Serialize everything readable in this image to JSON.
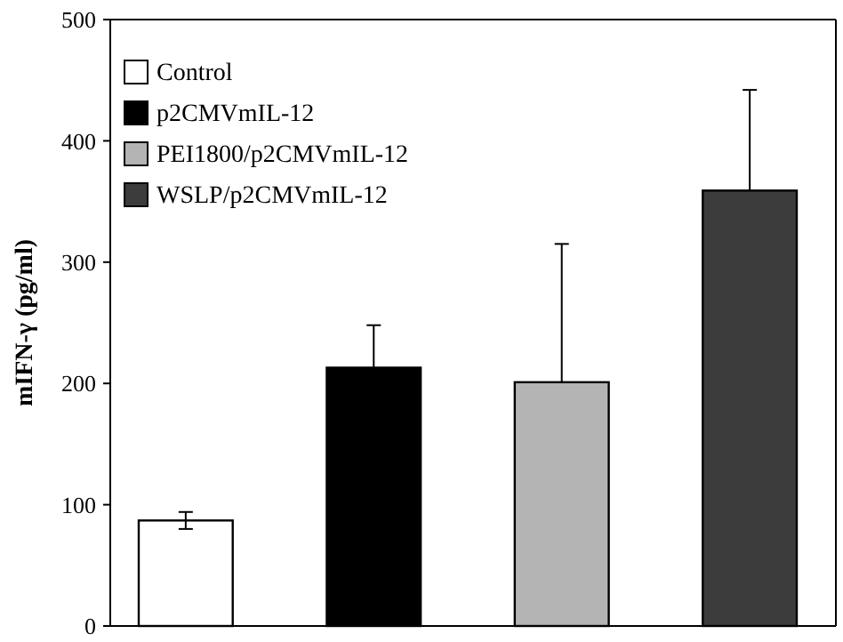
{
  "chart_data": {
    "type": "bar",
    "ylabel": "mIFN-γ (pg/ml)",
    "categories": [
      null,
      null,
      null,
      null
    ],
    "series": [
      {
        "name": "Control",
        "color": "#ffffff",
        "values": [
          87,
          null,
          null,
          null
        ],
        "errors": [
          7,
          null,
          null,
          null
        ]
      },
      {
        "name": "p2CMVmIL-12",
        "color": "#000000",
        "values": [
          null,
          213,
          null,
          null
        ],
        "errors": [
          null,
          [
            213,
            248
          ],
          null,
          null
        ]
      },
      {
        "name": "PEI1800/p2CMVmIL-12",
        "color": "#b4b4b4",
        "values": [
          null,
          null,
          201,
          null
        ],
        "errors": [
          null,
          null,
          [
            201,
            315
          ],
          null
        ]
      },
      {
        "name": "WSLP/p2CMVmIL-12",
        "color": "#3c3c3c",
        "values": [
          null,
          null,
          null,
          359
        ],
        "errors": [
          null,
          null,
          null,
          [
            359,
            442
          ]
        ]
      }
    ],
    "ylim": [
      0,
      500
    ],
    "yticks": [
      0,
      100,
      200,
      300,
      400,
      500
    ],
    "legend": "top left"
  }
}
